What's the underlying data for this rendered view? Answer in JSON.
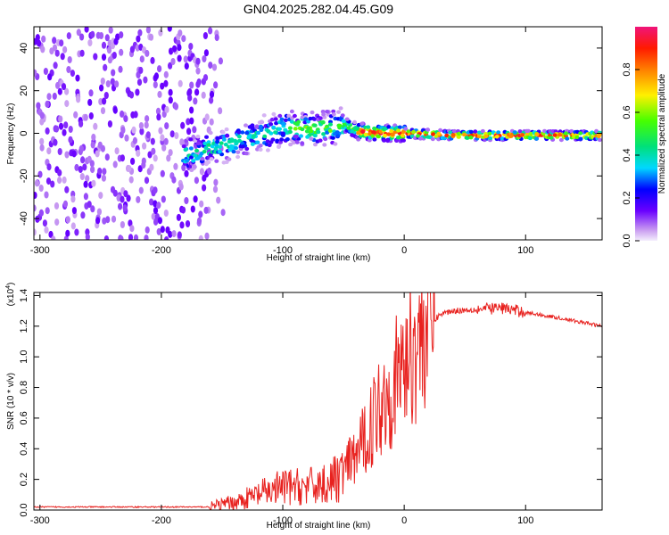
{
  "title": "GN04.2025.282.04.45.G09",
  "chart_data": [
    {
      "type": "heatmap",
      "xlabel": "Height of straight line (km)",
      "ylabel": "Frequency (Hz)",
      "xlim": [
        -305,
        163
      ],
      "ylim": [
        -50,
        50
      ],
      "xticks": [
        -300,
        -200,
        -100,
        0,
        100
      ],
      "yticks": [
        -40,
        -20,
        0,
        20,
        40
      ],
      "colorbar": {
        "label": "Normalized spectral amplitude",
        "range": [
          0,
          1
        ],
        "ticks": [
          0.0,
          0.2,
          0.4,
          0.6,
          0.8
        ]
      },
      "ridge": {
        "x": [
          -180,
          -160,
          -140,
          -120,
          -100,
          -80,
          -60,
          -50,
          -40,
          -20,
          0,
          20,
          40,
          60,
          80,
          100,
          120,
          163
        ],
        "y": [
          -10,
          -7,
          -4,
          -1,
          3,
          2,
          3,
          4,
          1,
          0,
          0,
          -0.5,
          -1,
          -1,
          -1,
          -1,
          -1,
          -1
        ]
      },
      "noise_region_x": [
        -305,
        -150
      ]
    },
    {
      "type": "line",
      "xlabel": "Height of straight line (km)",
      "ylabel": "SNR (10 * v/v)",
      "y_multiplier": "(x10",
      "y_multiplier_exp": "4",
      "xlim": [
        -305,
        163
      ],
      "ylim": [
        0,
        1.42
      ],
      "xticks": [
        -300,
        -200,
        -100,
        0,
        100
      ],
      "yticks": [
        0.0,
        0.2,
        0.4,
        0.6,
        0.8,
        1.0,
        1.2,
        1.4
      ],
      "series": [
        {
          "color": "#e8221f",
          "x": [
            -305,
            -250,
            -200,
            -160,
            -140,
            -120,
            -100,
            -80,
            -60,
            -50,
            -40,
            -30,
            -20,
            -10,
            0,
            10,
            20,
            30,
            40,
            60,
            80,
            100,
            130,
            163
          ],
          "y": [
            0.02,
            0.02,
            0.02,
            0.02,
            0.05,
            0.1,
            0.15,
            0.15,
            0.18,
            0.25,
            0.35,
            0.5,
            0.7,
            0.8,
            0.95,
            1.1,
            1.2,
            1.28,
            1.3,
            1.31,
            1.32,
            1.29,
            1.25,
            1.2
          ]
        }
      ]
    }
  ]
}
